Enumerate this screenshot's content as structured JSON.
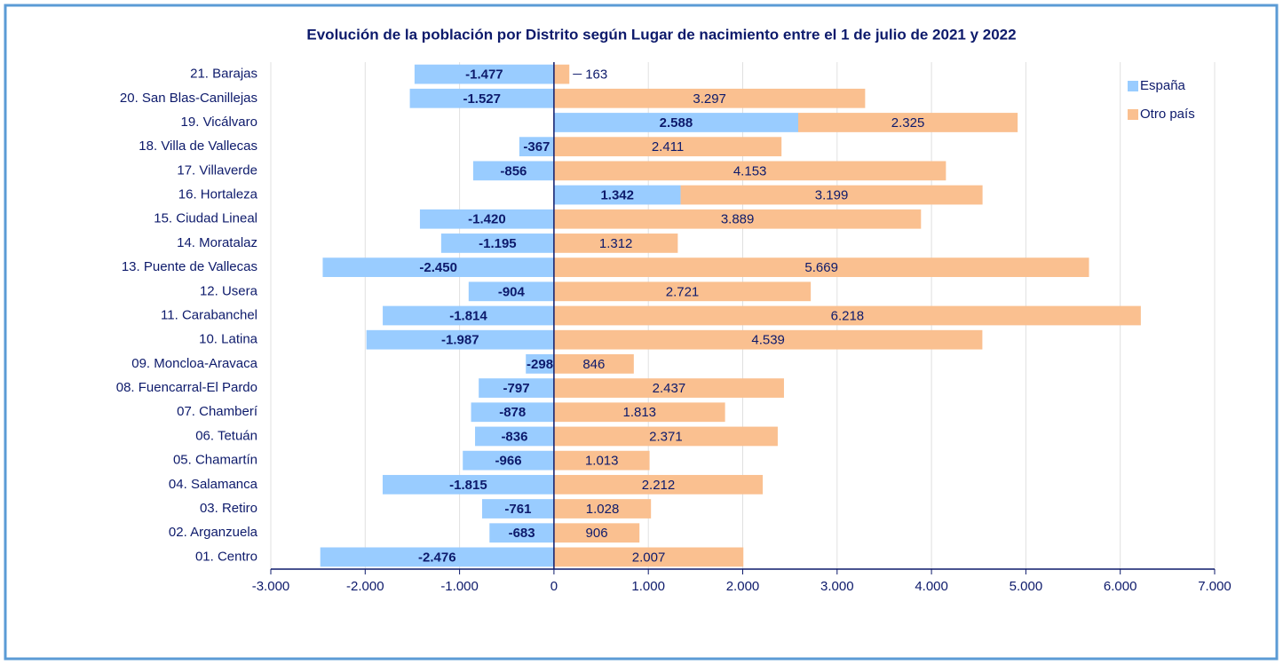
{
  "chart_data": {
    "type": "bar",
    "orientation": "horizontal",
    "stacked": true,
    "title": "Evolución de la población por Distrito según Lugar de nacimiento entre el 1 de julio de 2021 y 2022",
    "categories": [
      "01. Centro",
      "02. Arganzuela",
      "03. Retiro",
      "04. Salamanca",
      "05. Chamartín",
      "06. Tetuán",
      "07. Chamberí",
      "08. Fuencarral-El Pardo",
      "09. Moncloa-Aravaca",
      "10. Latina",
      "11. Carabanchel",
      "12. Usera",
      "13. Puente de Vallecas",
      "14. Moratalaz",
      "15. Ciudad Lineal",
      "16. Hortaleza",
      "17. Villaverde",
      "18. Villa de Vallecas",
      "19. Vicálvaro",
      "20. San Blas-Canillejas",
      "21. Barajas"
    ],
    "series": [
      {
        "name": "España",
        "color": "#99ccff",
        "values": [
          -2476,
          -683,
          -761,
          -1815,
          -966,
          -836,
          -878,
          -797,
          -298,
          -1987,
          -1814,
          -904,
          -2450,
          -1195,
          -1420,
          1342,
          -856,
          -367,
          2588,
          -1527,
          -1477
        ],
        "value_labels": [
          "-2.476",
          "-683",
          "-761",
          "-1.815",
          "-966",
          "-836",
          "-878",
          "-797",
          "-298",
          "-1.987",
          "-1.814",
          "-904",
          "-2.450",
          "-1.195",
          "-1.420",
          "1.342",
          "-856",
          "-367",
          "2.588",
          "-1.527",
          "-1.477"
        ]
      },
      {
        "name": "Otro país",
        "color": "#fac090",
        "values": [
          2007,
          906,
          1028,
          2212,
          1013,
          2371,
          1813,
          2437,
          846,
          4539,
          6218,
          2721,
          5669,
          1312,
          3889,
          3199,
          4153,
          2411,
          2325,
          3297,
          163
        ],
        "value_labels": [
          "2.007",
          "906",
          "1.028",
          "2.212",
          "1.013",
          "2.371",
          "1.813",
          "2.437",
          "846",
          "4.539",
          "6.218",
          "2.721",
          "5.669",
          "1.312",
          "3.889",
          "3.199",
          "4.153",
          "2.411",
          "2.325",
          "3.297",
          "163"
        ]
      }
    ],
    "xlim": [
      -3000,
      7000
    ],
    "xticks": [
      {
        "value": -3000,
        "label": "-3.000"
      },
      {
        "value": -2000,
        "label": "-2.000"
      },
      {
        "value": -1000,
        "label": "-1.000"
      },
      0,
      {
        "value": 1000,
        "label": "1.000"
      },
      {
        "value": 2000,
        "label": "2.000"
      },
      {
        "value": 3000,
        "label": "3.000"
      },
      {
        "value": 4000,
        "label": "4.000"
      },
      {
        "value": 5000,
        "label": "5.000"
      },
      {
        "value": 6000,
        "label": "6.000"
      },
      {
        "value": 7000,
        "label": "7.000"
      }
    ],
    "grid": true,
    "legend": "top-right"
  }
}
